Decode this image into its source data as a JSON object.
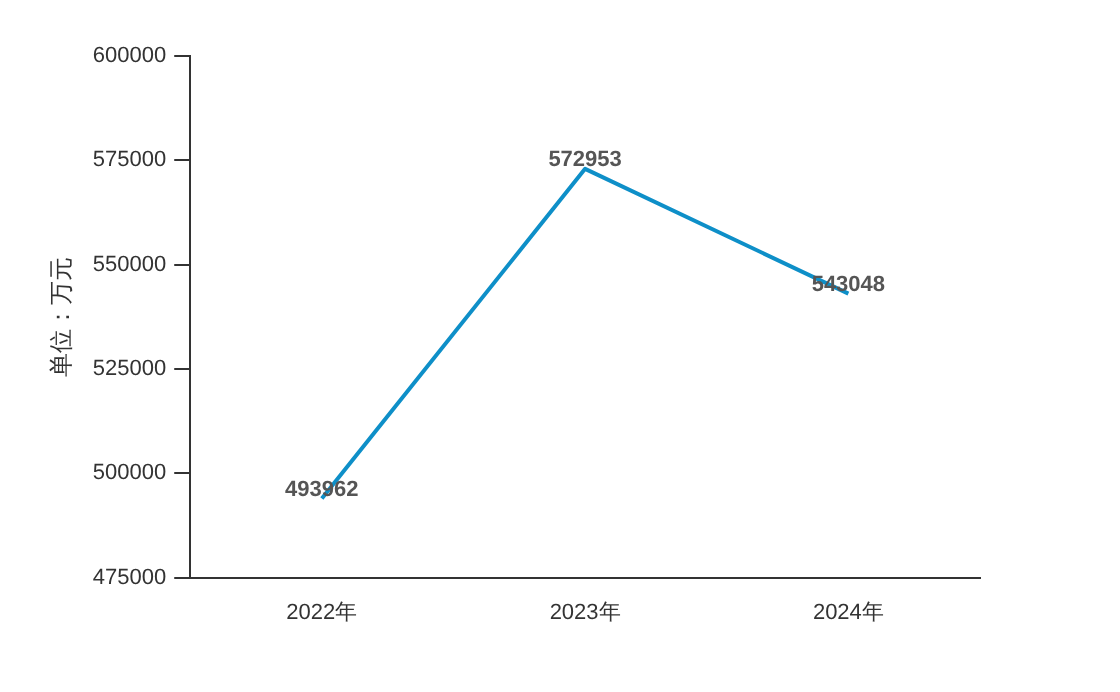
{
  "chart_data": {
    "type": "line",
    "ylabel": "单位：万元",
    "categories": [
      "2022年",
      "2023年",
      "2024年"
    ],
    "series": [
      {
        "color": "#0e8fc8",
        "values": [
          493962,
          572953,
          543048
        ]
      }
    ],
    "ylim": [
      475000,
      600000
    ],
    "yticks": [
      475000,
      500000,
      525000,
      550000,
      575000,
      600000
    ],
    "grid": false,
    "legend": false,
    "marker": "none",
    "data_labels": true
  }
}
